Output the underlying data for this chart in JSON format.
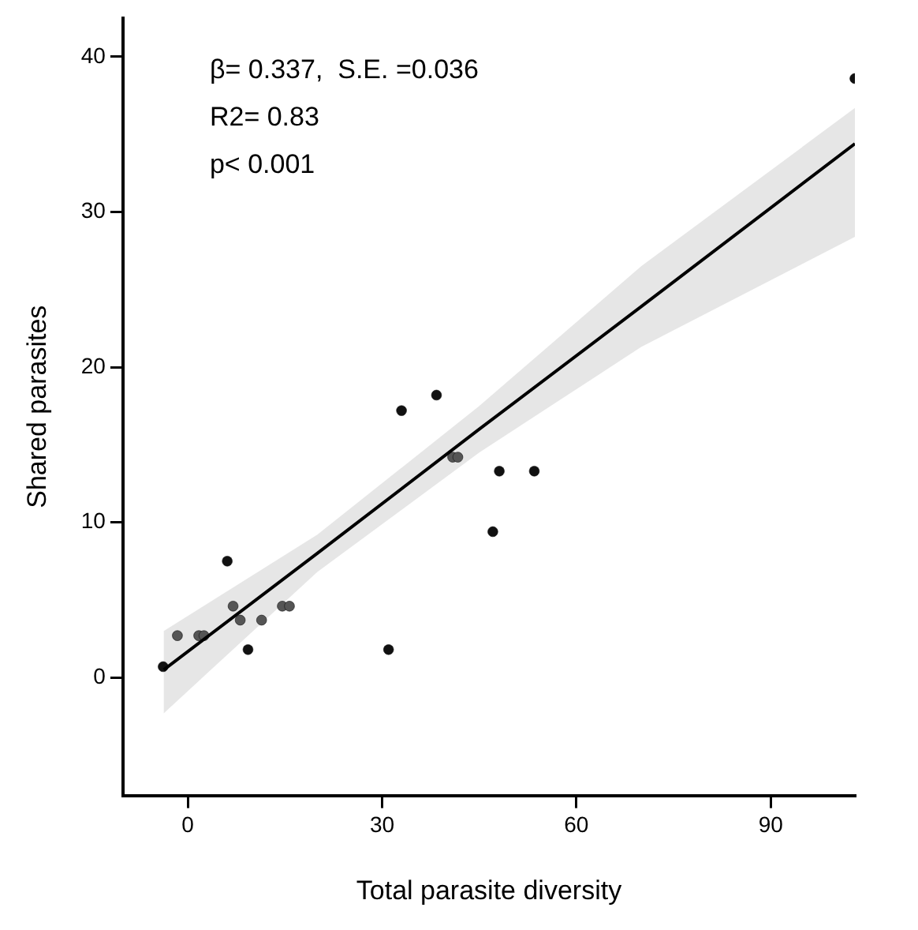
{
  "chart_data": {
    "type": "scatter",
    "xlabel": "Total parasite diversity",
    "ylabel": "Shared parasites",
    "xlim": [
      -10,
      103
    ],
    "ylim": [
      -7.6,
      42.5
    ],
    "xticks": [
      0,
      30,
      60,
      90
    ],
    "yticks": [
      0,
      10,
      20,
      30,
      40
    ],
    "grid": false,
    "legend": false,
    "annotations": [
      "β= 0.337,  S.E. =0.036",
      "R2= 0.83",
      "p< 0.001"
    ],
    "series": [
      {
        "marker": "circle",
        "color": "#111111",
        "x": [
          -3.8,
          -1.6,
          1.7,
          2.5,
          6.1,
          7.0,
          8.1,
          9.3,
          11.4,
          14.6,
          15.7,
          31.0,
          33.0,
          38.4,
          40.9,
          41.7,
          48.1,
          53.5,
          47.1,
          103
        ],
        "values": [
          0.7,
          2.7,
          2.7,
          2.7,
          7.5,
          4.6,
          3.7,
          1.8,
          3.7,
          4.6,
          4.6,
          1.8,
          17.2,
          18.2,
          14.2,
          14.2,
          13.3,
          13.3,
          9.4,
          38.6
        ],
        "colors": [
          "#111111",
          "#555555",
          "#555555",
          "#555555",
          "#111111",
          "#555555",
          "#555555",
          "#111111",
          "#555555",
          "#555555",
          "#555555",
          "#111111",
          "#111111",
          "#111111",
          "#555555",
          "#555555",
          "#111111",
          "#111111",
          "#111111",
          "#111111"
        ]
      },
      {
        "type": "line",
        "color": "#000000",
        "x": [
          -3.7,
          20,
          45,
          70,
          103
        ],
        "values": [
          0.5,
          8.0,
          16.0,
          23.9,
          34.4
        ],
        "lower": [
          -2.3,
          6.8,
          14.5,
          21.3,
          28.4
        ],
        "upper": [
          3.0,
          9.2,
          17.5,
          26.5,
          36.7
        ]
      }
    ]
  }
}
